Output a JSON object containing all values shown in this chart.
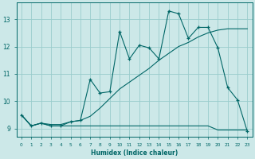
{
  "xlabel": "Humidex (Indice chaleur)",
  "background_color": "#cce8e8",
  "grid_color": "#99cccc",
  "line_color": "#006666",
  "xlim": [
    -0.5,
    23.5
  ],
  "ylim": [
    8.7,
    13.6
  ],
  "yticks": [
    9,
    10,
    11,
    12,
    13
  ],
  "xticks": [
    0,
    1,
    2,
    3,
    4,
    5,
    6,
    7,
    8,
    9,
    10,
    11,
    12,
    13,
    14,
    15,
    16,
    17,
    18,
    19,
    20,
    21,
    22,
    23
  ],
  "series": [
    {
      "x": [
        0,
        1,
        2,
        3,
        4,
        5,
        6,
        7,
        8,
        9,
        10,
        11,
        12,
        13,
        14,
        15,
        16,
        17,
        18,
        19,
        20,
        21,
        22,
        23
      ],
      "y": [
        9.5,
        9.1,
        9.2,
        9.1,
        9.1,
        9.1,
        9.1,
        9.1,
        9.1,
        9.1,
        9.1,
        9.1,
        9.1,
        9.1,
        9.1,
        9.1,
        9.1,
        9.1,
        9.1,
        9.1,
        8.95,
        8.95,
        8.95,
        8.95
      ],
      "marker": false
    },
    {
      "x": [
        0,
        1,
        2,
        3,
        4,
        5,
        6,
        7,
        8,
        9,
        10,
        11,
        12,
        13,
        14,
        15,
        16,
        17,
        18,
        19,
        20,
        21,
        22,
        23
      ],
      "y": [
        9.5,
        9.1,
        9.2,
        9.15,
        9.15,
        9.25,
        9.3,
        9.45,
        9.75,
        10.1,
        10.45,
        10.7,
        10.95,
        11.2,
        11.5,
        11.75,
        12.0,
        12.15,
        12.35,
        12.5,
        12.6,
        12.65,
        12.65,
        12.65
      ],
      "marker": false
    },
    {
      "x": [
        0,
        1,
        2,
        3,
        4,
        5,
        6,
        7,
        8,
        9,
        10,
        11,
        12,
        13,
        14,
        15,
        16,
        17,
        18,
        19,
        20,
        21,
        22,
        23
      ],
      "y": [
        9.5,
        9.1,
        9.2,
        9.1,
        9.1,
        9.25,
        9.3,
        10.8,
        10.3,
        10.35,
        12.55,
        11.55,
        12.05,
        11.95,
        11.55,
        13.3,
        13.2,
        12.3,
        12.7,
        12.7,
        11.95,
        10.5,
        10.05,
        8.9
      ],
      "marker": true
    }
  ]
}
